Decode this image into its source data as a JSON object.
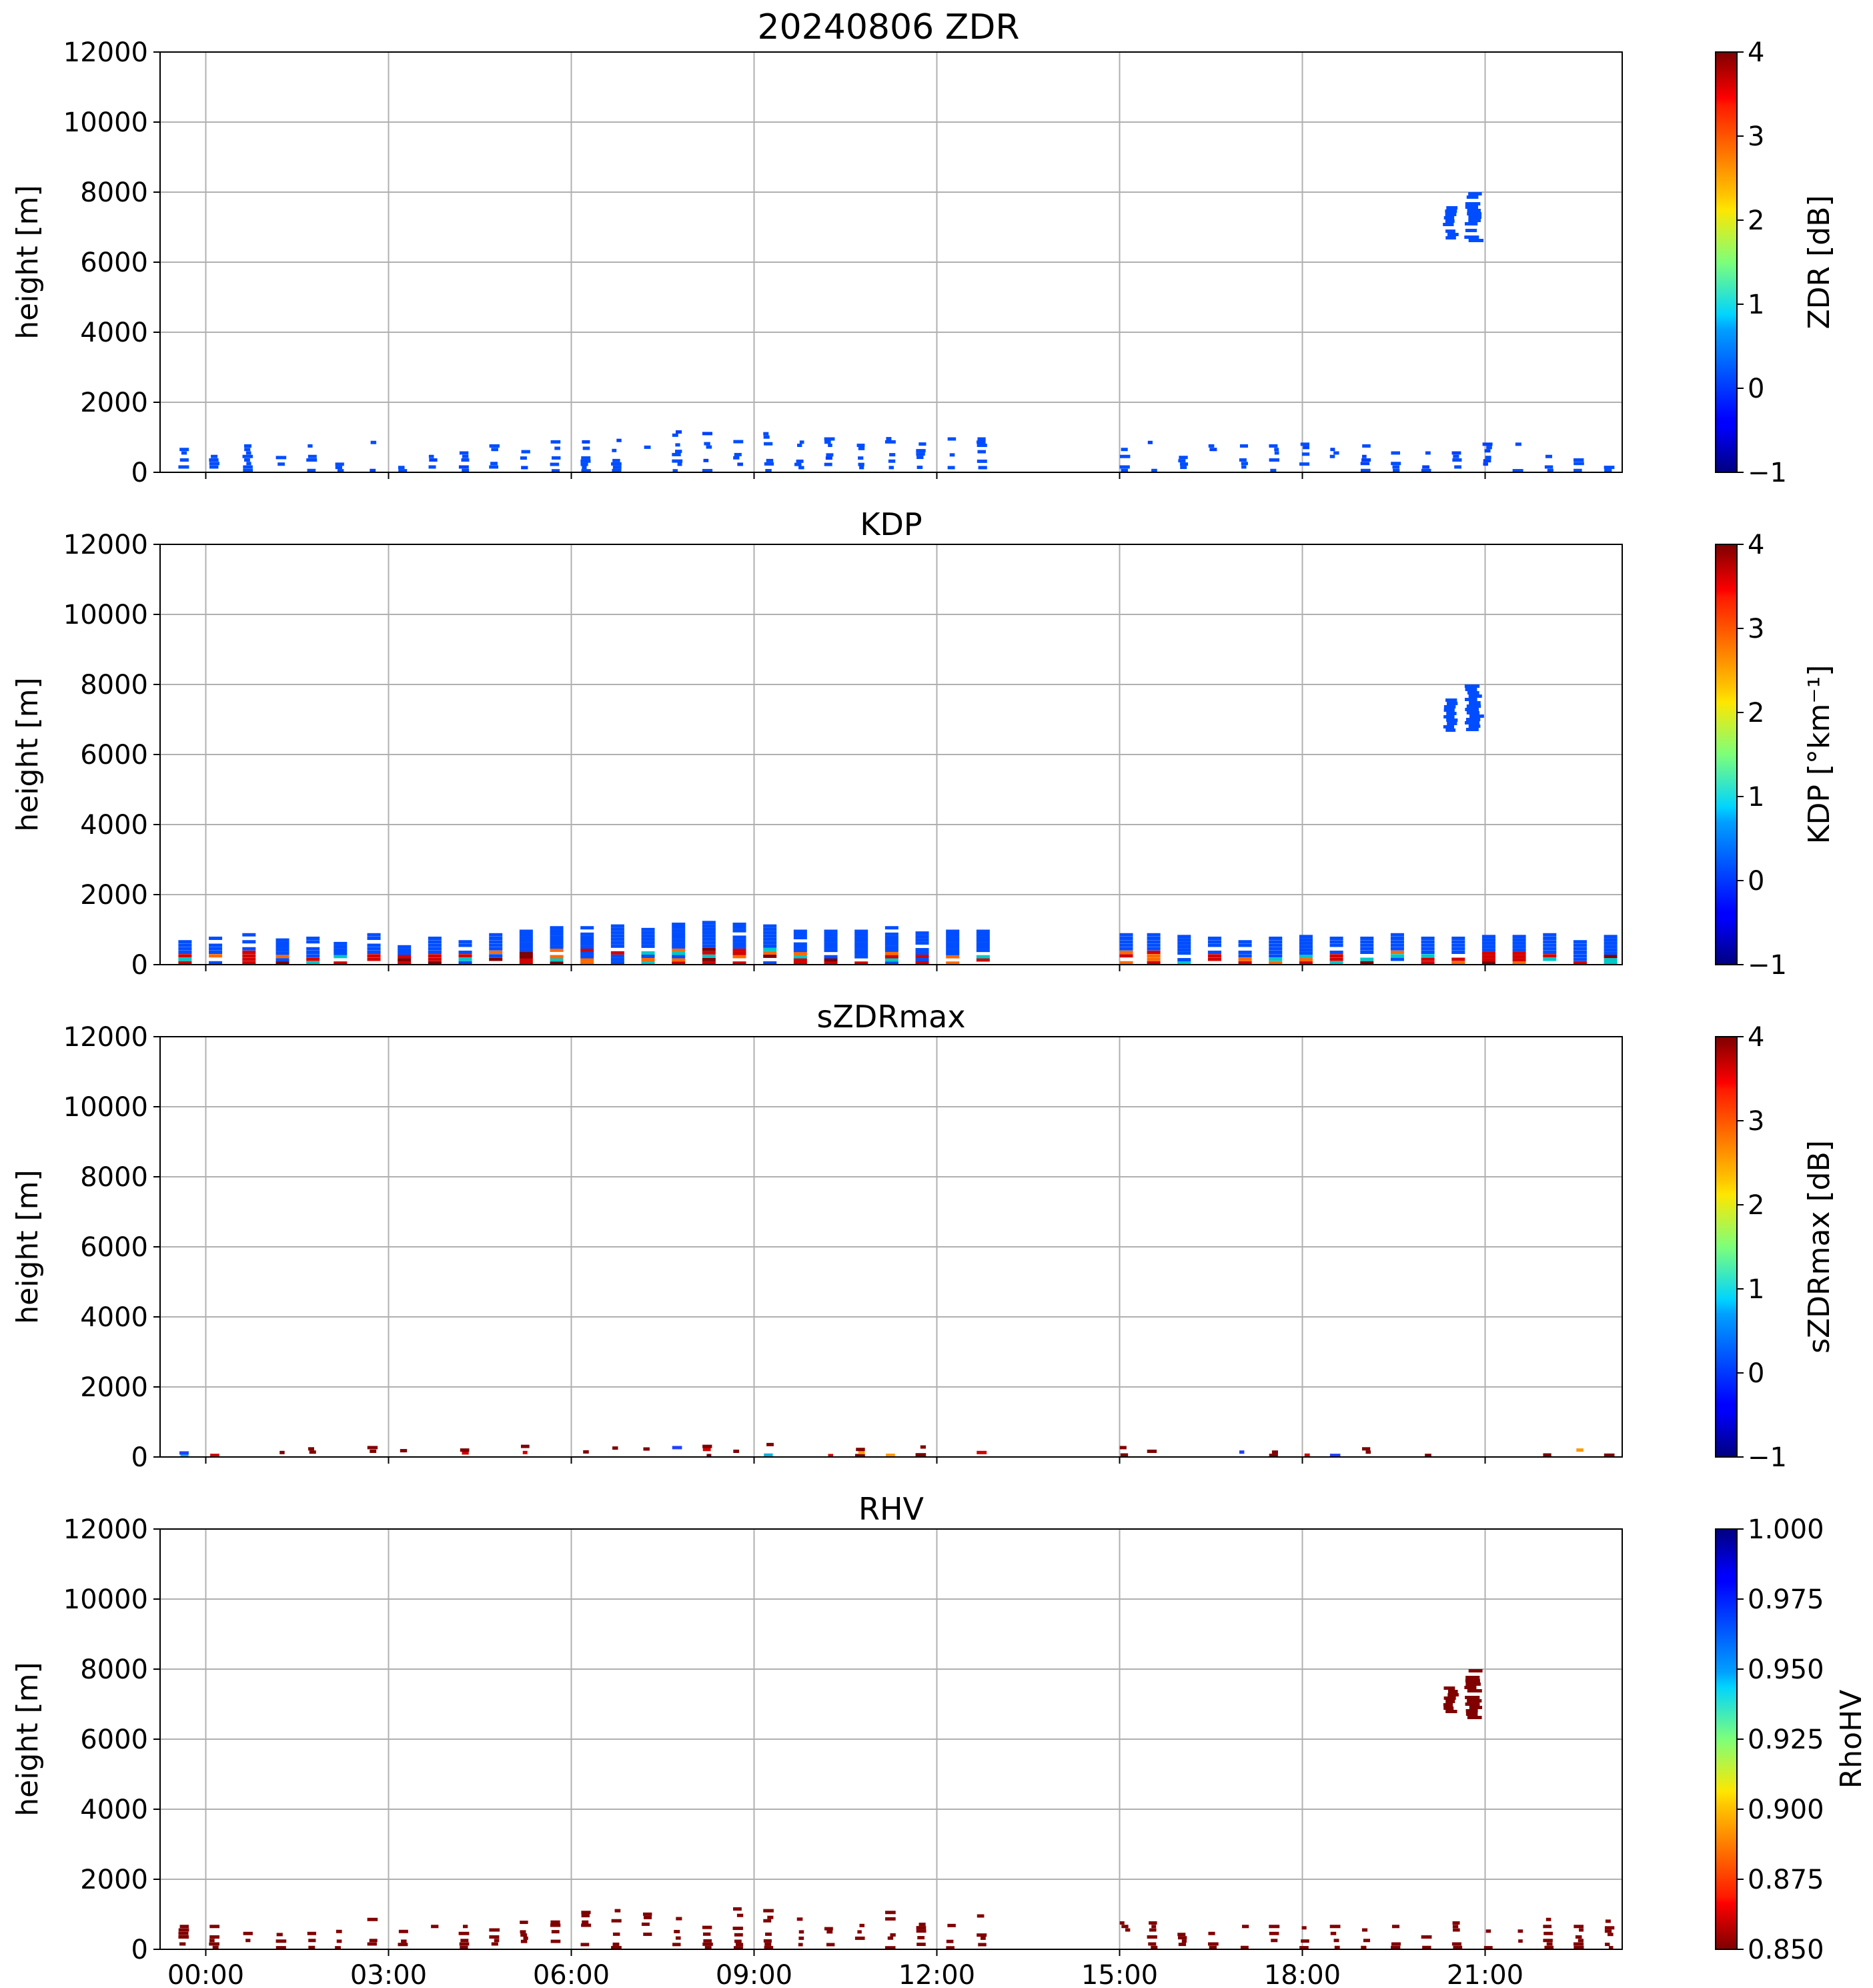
{
  "figure_title": "20240806 ZDR",
  "chart_data": [
    {
      "type": "heatmap",
      "title": "",
      "ylabel": "height [m]",
      "ylim": [
        0,
        12000
      ],
      "yticks": [
        "0",
        "2000",
        "4000",
        "6000",
        "8000",
        "10000",
        "12000"
      ],
      "colorbar": {
        "label": "ZDR [dB]",
        "range": [
          -1,
          4
        ],
        "ticks": [
          "−1",
          "0",
          "1",
          "2",
          "3",
          "4"
        ],
        "cmap": "jet"
      },
      "grid": true,
      "dominant_value": 0.0,
      "data_description": "periodic vertical scans at 0–~1200 m; elevated echo ~6600–8000 m near 20:30–21:00"
    },
    {
      "type": "heatmap",
      "title": "KDP",
      "ylabel": "height [m]",
      "ylim": [
        0,
        12000
      ],
      "yticks": [
        "0",
        "2000",
        "4000",
        "6000",
        "8000",
        "10000",
        "12000"
      ],
      "colorbar": {
        "label": "KDP [°km⁻¹]",
        "range": [
          -1,
          4
        ],
        "ticks": [
          "−1",
          "0",
          "1",
          "2",
          "3",
          "4"
        ],
        "cmap": "jet"
      },
      "grid": true,
      "dominant_value": 0.0,
      "data_description": "dense scans 0–~1300 m with higher values near ground; elevated echo ~6600–8000 m"
    },
    {
      "type": "heatmap",
      "title": "sZDRmax",
      "ylabel": "height [m]",
      "ylim": [
        0,
        12000
      ],
      "yticks": [
        "0",
        "2000",
        "4000",
        "6000",
        "8000",
        "10000",
        "12000"
      ],
      "colorbar": {
        "label": "sZDRmax [dB]",
        "range": [
          -1,
          4
        ],
        "ticks": [
          "−1",
          "0",
          "1",
          "2",
          "3",
          "4"
        ],
        "cmap": "jet"
      },
      "grid": true,
      "dominant_value": 4.0,
      "data_description": "sparse low-level values below ~500 m"
    },
    {
      "type": "heatmap",
      "title": "RHV",
      "ylabel": "height [m]",
      "ylim": [
        0,
        12000
      ],
      "yticks": [
        "0",
        "2000",
        "4000",
        "6000",
        "8000",
        "10000",
        "12000"
      ],
      "colorbar": {
        "label": "RhoHV",
        "range": [
          0.85,
          1.0
        ],
        "ticks": [
          "0.850",
          "0.875",
          "0.900",
          "0.925",
          "0.950",
          "0.975",
          "1.000"
        ],
        "cmap": "jet_r"
      },
      "grid": true,
      "dominant_value": 0.85,
      "data_description": "low RhoHV (~0.85) scans 0–~1200 m; elevated echo ~6600–8000 m"
    }
  ],
  "xaxis": {
    "range_hours": [
      -0.75,
      23.25
    ],
    "tick_hours": [
      0,
      3,
      6,
      9,
      12,
      15,
      18,
      21
    ],
    "tick_labels": [
      "00:00",
      "03:00",
      "06:00",
      "09:00",
      "12:00",
      "15:00",
      "18:00",
      "21:00"
    ]
  },
  "scans": {
    "hours": [
      -0.45,
      0.05,
      0.6,
      1.15,
      1.65,
      2.1,
      2.65,
      3.15,
      3.65,
      4.15,
      4.65,
      5.15,
      5.65,
      6.15,
      6.65,
      7.15,
      7.65,
      8.15,
      8.65,
      9.15,
      9.65,
      10.15,
      10.65,
      11.15,
      11.65,
      12.15,
      12.65,
      15.0,
      15.45,
      15.95,
      16.45,
      16.95,
      17.45,
      17.95,
      18.45,
      18.95,
      19.45,
      19.95,
      20.45,
      20.95,
      21.45,
      21.95,
      22.45,
      22.95
    ],
    "top_m": [
      700,
      800,
      900,
      750,
      800,
      650,
      900,
      650,
      800,
      700,
      900,
      1000,
      1100,
      1100,
      1150,
      1050,
      1200,
      1250,
      1200,
      1150,
      1000,
      1000,
      1000,
      1100,
      950,
      1000,
      1000,
      900,
      900,
      850,
      800,
      800,
      800,
      850,
      800,
      800,
      900,
      800,
      800,
      850,
      850,
      900,
      700,
      850
    ]
  },
  "elevated_echo": [
    {
      "hour_start": 20.35,
      "hour_end": 20.55,
      "bottom_m": 6700,
      "top_m": 7600
    },
    {
      "hour_start": 20.7,
      "hour_end": 20.95,
      "bottom_m": 6600,
      "top_m": 8000
    }
  ]
}
